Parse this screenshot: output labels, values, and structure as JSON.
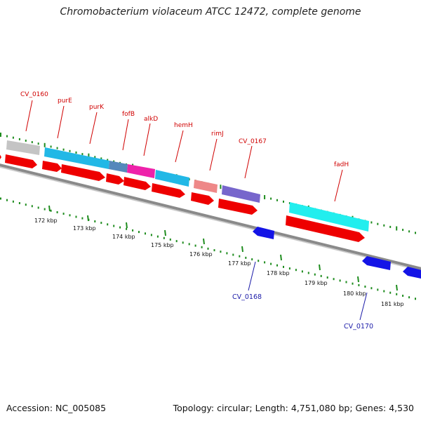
{
  "title": "Chromobacterium violaceum ATCC 12472, complete genome",
  "footer": {
    "accession": "Accession: NC_005085",
    "stats": "Topology: circular; Length: 4,751,080 bp; Genes: 4,530"
  },
  "colors": {
    "forward_cds": "#ee0000",
    "reverse_cds": "#1414e6",
    "backbone": "#8a8a8a",
    "dots": "#1e8c1e",
    "label_forward": "#d00000",
    "label_reverse": "#1a1aa8"
  },
  "scale_labels": [
    "172 kbp",
    "173 kbp",
    "174 kbp",
    "175 kbp",
    "176 kbp",
    "177 kbp",
    "178 kbp",
    "179 kbp",
    "180 kbp",
    "181 kbp"
  ],
  "gene_labels_forward": [
    "CV_0160",
    "purE",
    "purK",
    "fofB",
    "alkD",
    "hemH",
    "rimJ",
    "CV_0167",
    "fadH"
  ],
  "gene_labels_reverse": [
    "CV_0168",
    "CV_0170"
  ],
  "cog_colors": [
    "#c4c4c4",
    "#22b8e6",
    "#5588bb",
    "#ee22aa",
    "#22b8e6",
    "#ee8888",
    "#7766cc",
    "#22eeee"
  ]
}
